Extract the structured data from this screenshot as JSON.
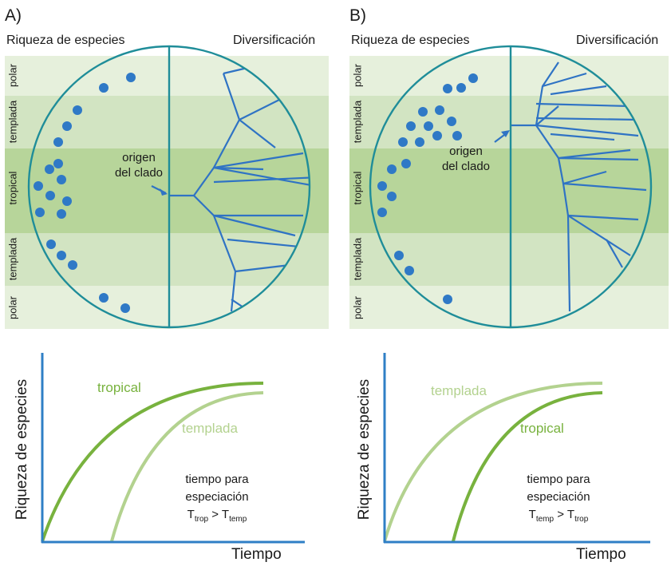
{
  "panels": [
    {
      "letter": "A)",
      "left_heading": "Riqueza de especies",
      "right_heading": "Diversificación",
      "bands": [
        "polar",
        "templada",
        "tropical",
        "templada",
        "polar"
      ],
      "origin_line1": "origen",
      "origin_line2": "del clado",
      "graph": {
        "ylabel": "Riqueza de especies",
        "xlabel": "Tiempo",
        "curve_dark_label": "tropical",
        "curve_light_label": "templada",
        "note_line1": "tiempo para",
        "note_line2": "especiación",
        "note_T": "T",
        "note_sub_left": "trop",
        "note_gt": " > T",
        "note_sub_right": "temp"
      }
    },
    {
      "letter": "B)",
      "left_heading": "Riqueza de especies",
      "right_heading": "Diversificación",
      "bands": [
        "polar",
        "templada",
        "tropical",
        "templada",
        "polar"
      ],
      "origin_line1": "origen",
      "origin_line2": "del clado",
      "graph": {
        "ylabel": "Riqueza de especies",
        "xlabel": "Tiempo",
        "curve_light_label": "templada",
        "curve_dark_label": "tropical",
        "note_line1": "tiempo para",
        "note_line2": "especiación",
        "note_T": "T",
        "note_sub_left": "temp",
        "note_gt": " > T",
        "note_sub_right": "trop"
      }
    }
  ],
  "colors": {
    "band_polar": "#e6f0dc",
    "band_temperate": "#d2e4c2",
    "band_tropical": "#b7d59a",
    "circle": "#1f8d99",
    "branch": "#2f73c4",
    "dot": "#2f79c6",
    "axis": "#2f7fc6",
    "curve_dark": "#78b23e",
    "curve_light": "#b3d28f"
  }
}
